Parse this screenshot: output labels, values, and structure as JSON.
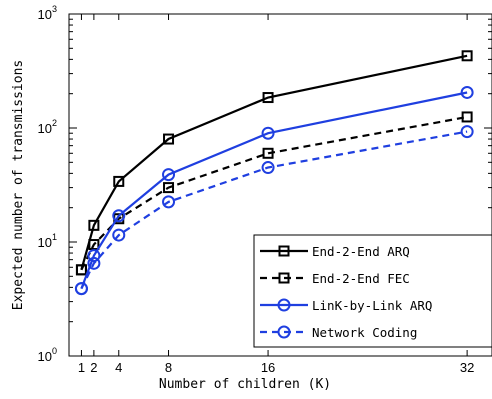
{
  "chart_data": {
    "type": "line",
    "title": "",
    "xlabel": "Number of children (K)",
    "ylabel": "Expected number of transmissions",
    "x": [
      1,
      2,
      4,
      8,
      16,
      32
    ],
    "xticks": [
      1,
      2,
      4,
      8,
      16,
      32
    ],
    "xlim": [
      0,
      34
    ],
    "yscale": "log",
    "ylim": [
      1,
      1000
    ],
    "yticks": [
      {
        "value": 1,
        "base": "10",
        "exp": "0"
      },
      {
        "value": 10,
        "base": "10",
        "exp": "1"
      },
      {
        "value": 100,
        "base": "10",
        "exp": "2"
      },
      {
        "value": 1000,
        "base": "10",
        "exp": "3"
      }
    ],
    "grid": false,
    "legend_position": "bottom-right",
    "series": [
      {
        "name": "End-2-End ARQ",
        "color": "#000000",
        "dashed": false,
        "marker": "square",
        "values": [
          5.7,
          14,
          34,
          80,
          185,
          430
        ]
      },
      {
        "name": "End-2-End FEC",
        "color": "#000000",
        "dashed": true,
        "marker": "square",
        "values": [
          5.7,
          9.5,
          16,
          30,
          60,
          125
        ]
      },
      {
        "name": "LinK-by-Link ARQ",
        "color": "#1f3fe0",
        "dashed": false,
        "marker": "circle",
        "values": [
          3.9,
          7.6,
          17,
          39,
          90,
          205
        ]
      },
      {
        "name": "Network Coding",
        "color": "#1f3fe0",
        "dashed": true,
        "marker": "circle",
        "values": [
          3.9,
          6.5,
          11.5,
          22.5,
          45,
          93
        ]
      }
    ]
  }
}
